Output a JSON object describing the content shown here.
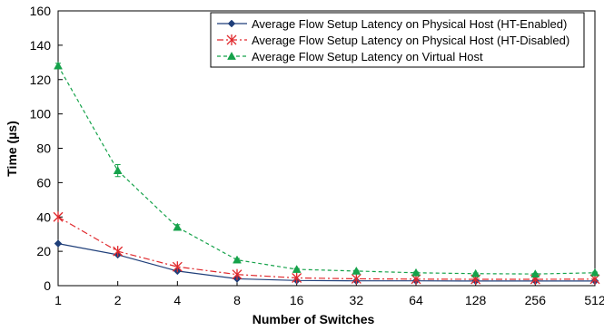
{
  "chart_data": {
    "type": "line",
    "xlabel": "Number of Switches",
    "ylabel": "Time (µs)",
    "ylim": [
      0,
      160
    ],
    "yticks": [
      0,
      20,
      40,
      60,
      80,
      100,
      120,
      140,
      160
    ],
    "categories": [
      "1",
      "2",
      "4",
      "8",
      "16",
      "32",
      "64",
      "128",
      "256",
      "512"
    ],
    "grid": false,
    "legend_position": "top-right",
    "series": [
      {
        "name": "Average Flow Setup Latency on Physical Host (HT-Enabled)",
        "values": [
          24.5,
          18.0,
          8.5,
          4.0,
          3.0,
          2.8,
          2.8,
          2.7,
          2.7,
          2.7
        ],
        "color": "#1f3f7a",
        "marker": "diamond",
        "dash": "solid"
      },
      {
        "name": "Average Flow Setup Latency on Physical Host (HT-Disabled)",
        "values": [
          40.0,
          20.0,
          11.0,
          6.5,
          4.5,
          4.0,
          3.8,
          3.7,
          3.7,
          3.8
        ],
        "color": "#e0282c",
        "marker": "asterisk",
        "dash": "dashdot"
      },
      {
        "name": "Average Flow Setup Latency on Virtual Host",
        "values": [
          128.0,
          67.0,
          34.0,
          15.0,
          9.5,
          8.5,
          7.5,
          7.0,
          6.8,
          7.5
        ],
        "errors": [
          1.5,
          3.5,
          1.5,
          0.8,
          0.5,
          0.4,
          0.4,
          0.4,
          0.4,
          0.4
        ],
        "color": "#15a24a",
        "marker": "triangle",
        "dash": "dashed"
      }
    ]
  }
}
